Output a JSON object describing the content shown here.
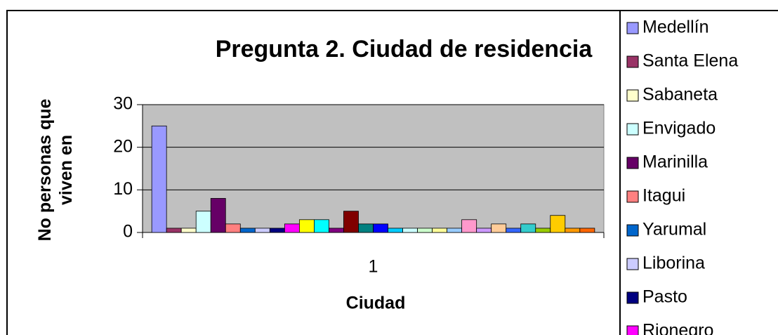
{
  "chart_data": {
    "type": "bar",
    "title": "Pregunta 2. Ciudad de residencia",
    "y_label": "No personas que viven en",
    "x_label": "Ciudad",
    "categories": [
      "1"
    ],
    "ylim": [
      0,
      30
    ],
    "yticks": [
      0,
      10,
      20,
      30
    ],
    "grid": true,
    "series": [
      {
        "name": "Medellín",
        "color": "#9999FF",
        "values": [
          25
        ]
      },
      {
        "name": "Santa Elena",
        "color": "#993366",
        "values": [
          1
        ]
      },
      {
        "name": "Sabaneta",
        "color": "#FFFFCC",
        "values": [
          1
        ]
      },
      {
        "name": "Envigado",
        "color": "#CCFFFF",
        "values": [
          5
        ]
      },
      {
        "name": "Marinilla",
        "color": "#660066",
        "values": [
          8
        ]
      },
      {
        "name": "Itagui",
        "color": "#FF8080",
        "values": [
          2
        ]
      },
      {
        "name": "Yarumal",
        "color": "#0066CC",
        "values": [
          1
        ]
      },
      {
        "name": "Liborina",
        "color": "#CCCCFF",
        "values": [
          1
        ]
      },
      {
        "name": "Pasto",
        "color": "#000080",
        "values": [
          1
        ]
      },
      {
        "name": "Rionegro",
        "color": "#FF00FF",
        "values": [
          2
        ]
      },
      {
        "name": null,
        "color": "#FFFF00",
        "values": [
          3
        ]
      },
      {
        "name": null,
        "color": "#00FFFF",
        "values": [
          3
        ]
      },
      {
        "name": null,
        "color": "#800080",
        "values": [
          1
        ]
      },
      {
        "name": null,
        "color": "#800000",
        "values": [
          5
        ]
      },
      {
        "name": null,
        "color": "#008080",
        "values": [
          2
        ]
      },
      {
        "name": null,
        "color": "#0000FF",
        "values": [
          2
        ]
      },
      {
        "name": null,
        "color": "#00CCFF",
        "values": [
          1
        ]
      },
      {
        "name": null,
        "color": "#CCFFFF",
        "values": [
          1
        ]
      },
      {
        "name": null,
        "color": "#CCFFCC",
        "values": [
          1
        ]
      },
      {
        "name": null,
        "color": "#FFFF99",
        "values": [
          1
        ]
      },
      {
        "name": null,
        "color": "#99CCFF",
        "values": [
          1
        ]
      },
      {
        "name": null,
        "color": "#FF99CC",
        "values": [
          3
        ]
      },
      {
        "name": null,
        "color": "#CC99FF",
        "values": [
          1
        ]
      },
      {
        "name": null,
        "color": "#FFCC99",
        "values": [
          2
        ]
      },
      {
        "name": null,
        "color": "#3366FF",
        "values": [
          1
        ]
      },
      {
        "name": null,
        "color": "#33CCCC",
        "values": [
          2
        ]
      },
      {
        "name": null,
        "color": "#99CC00",
        "values": [
          1
        ]
      },
      {
        "name": null,
        "color": "#FFCC00",
        "values": [
          4
        ]
      },
      {
        "name": null,
        "color": "#FF9900",
        "values": [
          1
        ]
      },
      {
        "name": null,
        "color": "#FF6600",
        "values": [
          1
        ]
      }
    ]
  }
}
